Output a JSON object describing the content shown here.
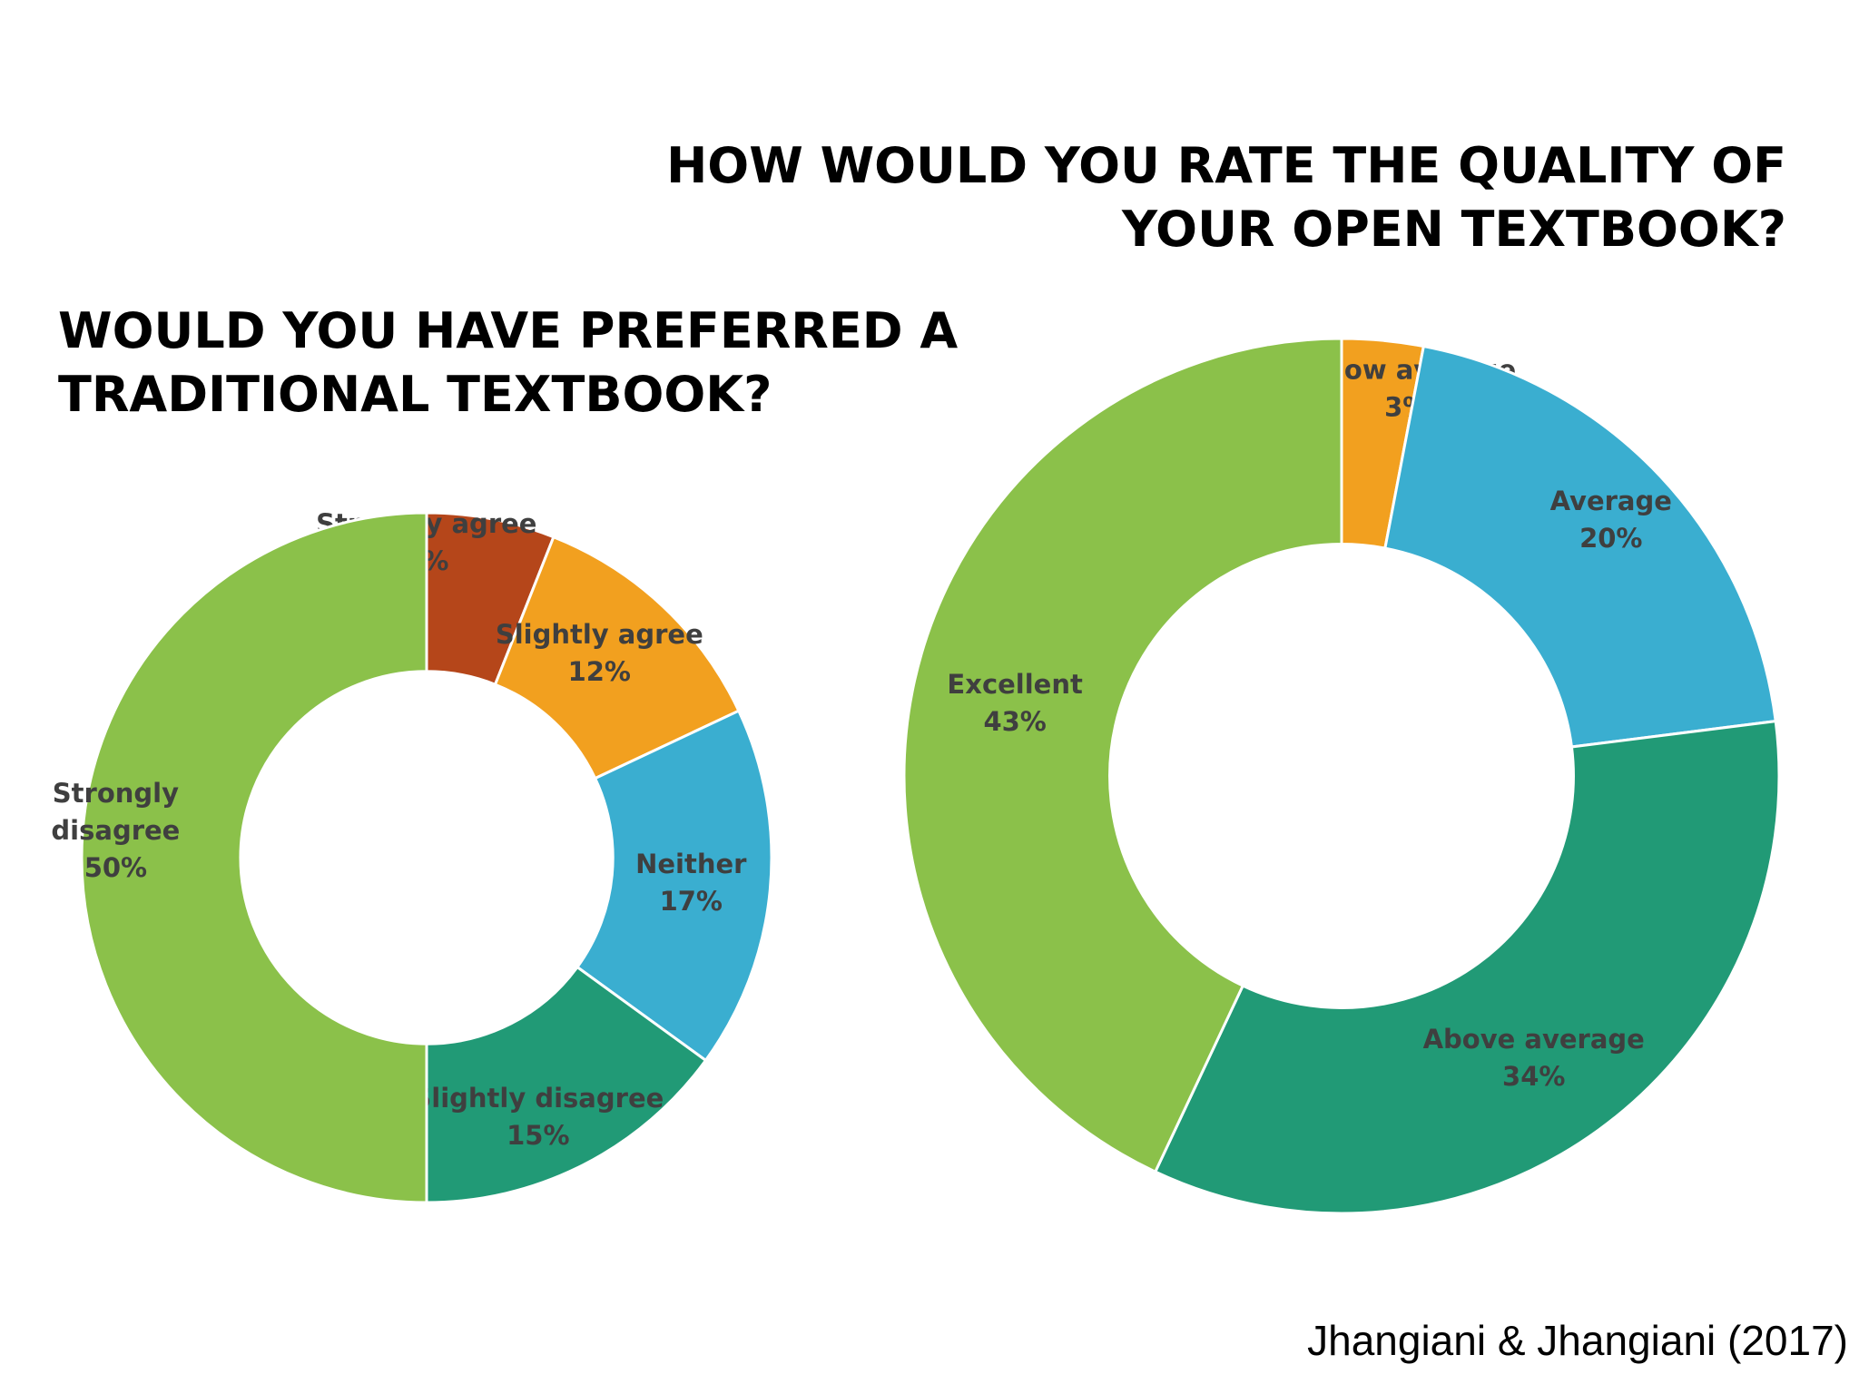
{
  "chart_data": [
    {
      "type": "pie",
      "title": "WOULD YOU HAVE PREFERRED A TRADITIONAL TEXTBOOK?",
      "categories": [
        "Strongly agree",
        "Slightly agree",
        "Neither",
        "Slightly disagree",
        "Strongly disagree"
      ],
      "values": [
        6,
        12,
        17,
        15,
        50
      ],
      "data_labels": [
        "6%",
        "12%",
        "17%",
        "15%",
        "50%"
      ],
      "colors": [
        "#b5461a",
        "#f2a01f",
        "#3aaed0",
        "#219a76",
        "#8bc14a"
      ],
      "hole": 0.54
    },
    {
      "type": "pie",
      "title": "HOW WOULD YOU RATE THE QUALITY OF YOUR OPEN TEXTBOOK?",
      "categories": [
        "Below average",
        "Average",
        "Above average",
        "Excellent"
      ],
      "values": [
        3,
        20,
        34,
        43
      ],
      "data_labels": [
        "3%",
        "20%",
        "34%",
        "43%"
      ],
      "colors": [
        "#f2a01f",
        "#3aaed0",
        "#219a76",
        "#8bc14a"
      ],
      "hole": 0.53
    }
  ],
  "citation": "Jhangiani & Jhangiani (2017)"
}
